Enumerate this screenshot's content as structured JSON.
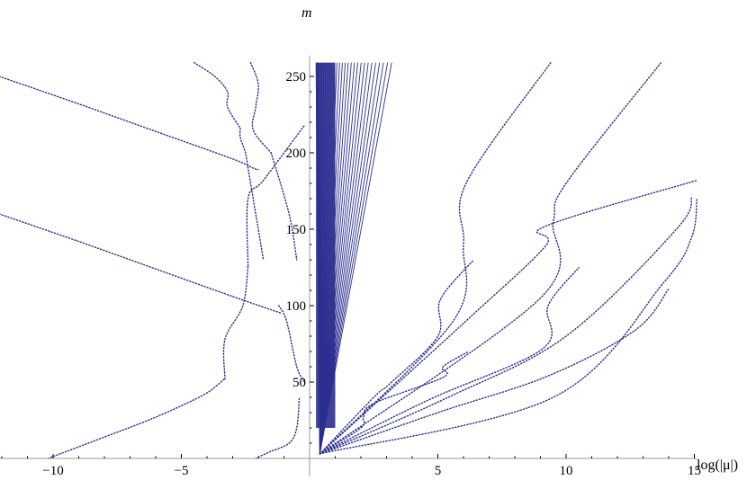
{
  "chart_data": {
    "type": "scatter",
    "xlabel": "log(|μ|)",
    "ylabel": "m",
    "xlim": [
      -12.1,
      15.1
    ],
    "ylim": [
      0,
      259
    ],
    "x_ticks": [
      -10,
      -5,
      5,
      10,
      15
    ],
    "y_ticks": [
      50,
      100,
      150,
      200,
      250
    ],
    "grid": false,
    "color": "#2b2f8f",
    "series": [
      {
        "x": [
          -12.1,
          -9,
          -6,
          -3,
          -2.2,
          -2
        ],
        "y": [
          250,
          232,
          214,
          196,
          190,
          189
        ]
      },
      {
        "x": [
          -12.1,
          -9,
          -6,
          -3,
          -1.1
        ],
        "y": [
          160,
          142,
          124,
          106,
          95
        ]
      },
      {
        "x": [
          -10.2,
          -8,
          -6,
          -4.2,
          -3.6,
          -3.4,
          -3.3
        ],
        "y": [
          0,
          14,
          27,
          41,
          48,
          51,
          52
        ]
      },
      {
        "x": [
          -3.3,
          -3.3,
          -2.6,
          -2.4
        ],
        "y": [
          52,
          78,
          100,
          126
        ]
      },
      {
        "x": [
          -2.4,
          -2.4,
          -1.8,
          -0.2
        ],
        "y": [
          126,
          170,
          182,
          218
        ]
      },
      {
        "x": [
          -4.5,
          -3.7,
          -3.2,
          -3.2,
          -2.7
        ],
        "y": [
          259,
          250,
          240,
          230,
          216
        ]
      },
      {
        "x": [
          -2.7,
          -2.7,
          -2.5,
          -2.4,
          -2.2,
          -2.0,
          -1.8
        ],
        "y": [
          216,
          210,
          200,
          190,
          170,
          150,
          130
        ]
      },
      {
        "x": [
          -2.3,
          -2.0,
          -2.1,
          -2.2,
          -1.5
        ],
        "y": [
          259,
          245,
          230,
          215,
          200
        ]
      },
      {
        "x": [
          -1.5,
          -0.8,
          -0.5
        ],
        "y": [
          200,
          160,
          130
        ]
      },
      {
        "x": [
          -2.1,
          -1.6,
          -0.8,
          -0.5,
          -0.4
        ],
        "y": [
          0,
          4,
          10,
          20,
          40
        ]
      },
      {
        "x": [
          -1.2,
          -0.9,
          -0.5,
          -0.2
        ],
        "y": [
          100,
          90,
          60,
          50
        ]
      },
      {
        "x": [
          0.4,
          2.0,
          2.1,
          2.5,
          5.2,
          5.2,
          6.2
        ],
        "y": [
          3,
          20,
          27,
          36,
          53,
          60,
          70
        ]
      },
      {
        "x": [
          0.4,
          2.5,
          3.2,
          5.0,
          5.1,
          6.4
        ],
        "y": [
          3,
          40,
          50,
          80,
          104,
          130
        ]
      },
      {
        "x": [
          0.4,
          4.6,
          9.1,
          9.3,
          10.5
        ],
        "y": [
          3,
          38,
          72,
          100,
          125
        ]
      },
      {
        "x": [
          0.4,
          5.0,
          9.3,
          12.7,
          14.0
        ],
        "y": [
          3,
          30,
          54,
          84,
          111
        ]
      },
      {
        "x": [
          0.4,
          9.5,
          13.8,
          14.9,
          15.1
        ],
        "y": [
          3,
          40,
          115,
          145,
          170
        ]
      },
      {
        "x": [
          0.4,
          5.4,
          10.0,
          14.3,
          14.9
        ],
        "y": [
          3,
          40,
          80,
          150,
          171
        ]
      },
      {
        "x": [
          0.4,
          9.0,
          9.5,
          10.0,
          13.7
        ],
        "y": [
          3,
          105,
          155,
          180,
          259
        ]
      },
      {
        "x": [
          0.4,
          6.1,
          9.2,
          9.2,
          15.1
        ],
        "y": [
          3,
          90,
          139,
          152,
          182
        ]
      },
      {
        "x": [
          0.4,
          5.6,
          6.0,
          6.1,
          9.4
        ],
        "y": [
          3,
          90,
          140,
          180,
          259
        ]
      }
    ],
    "fan": {
      "vertex": [
        0.4,
        3
      ],
      "x_min": 0.25,
      "x_max": 3.2,
      "y_top": 259,
      "n_lines": 30
    }
  }
}
